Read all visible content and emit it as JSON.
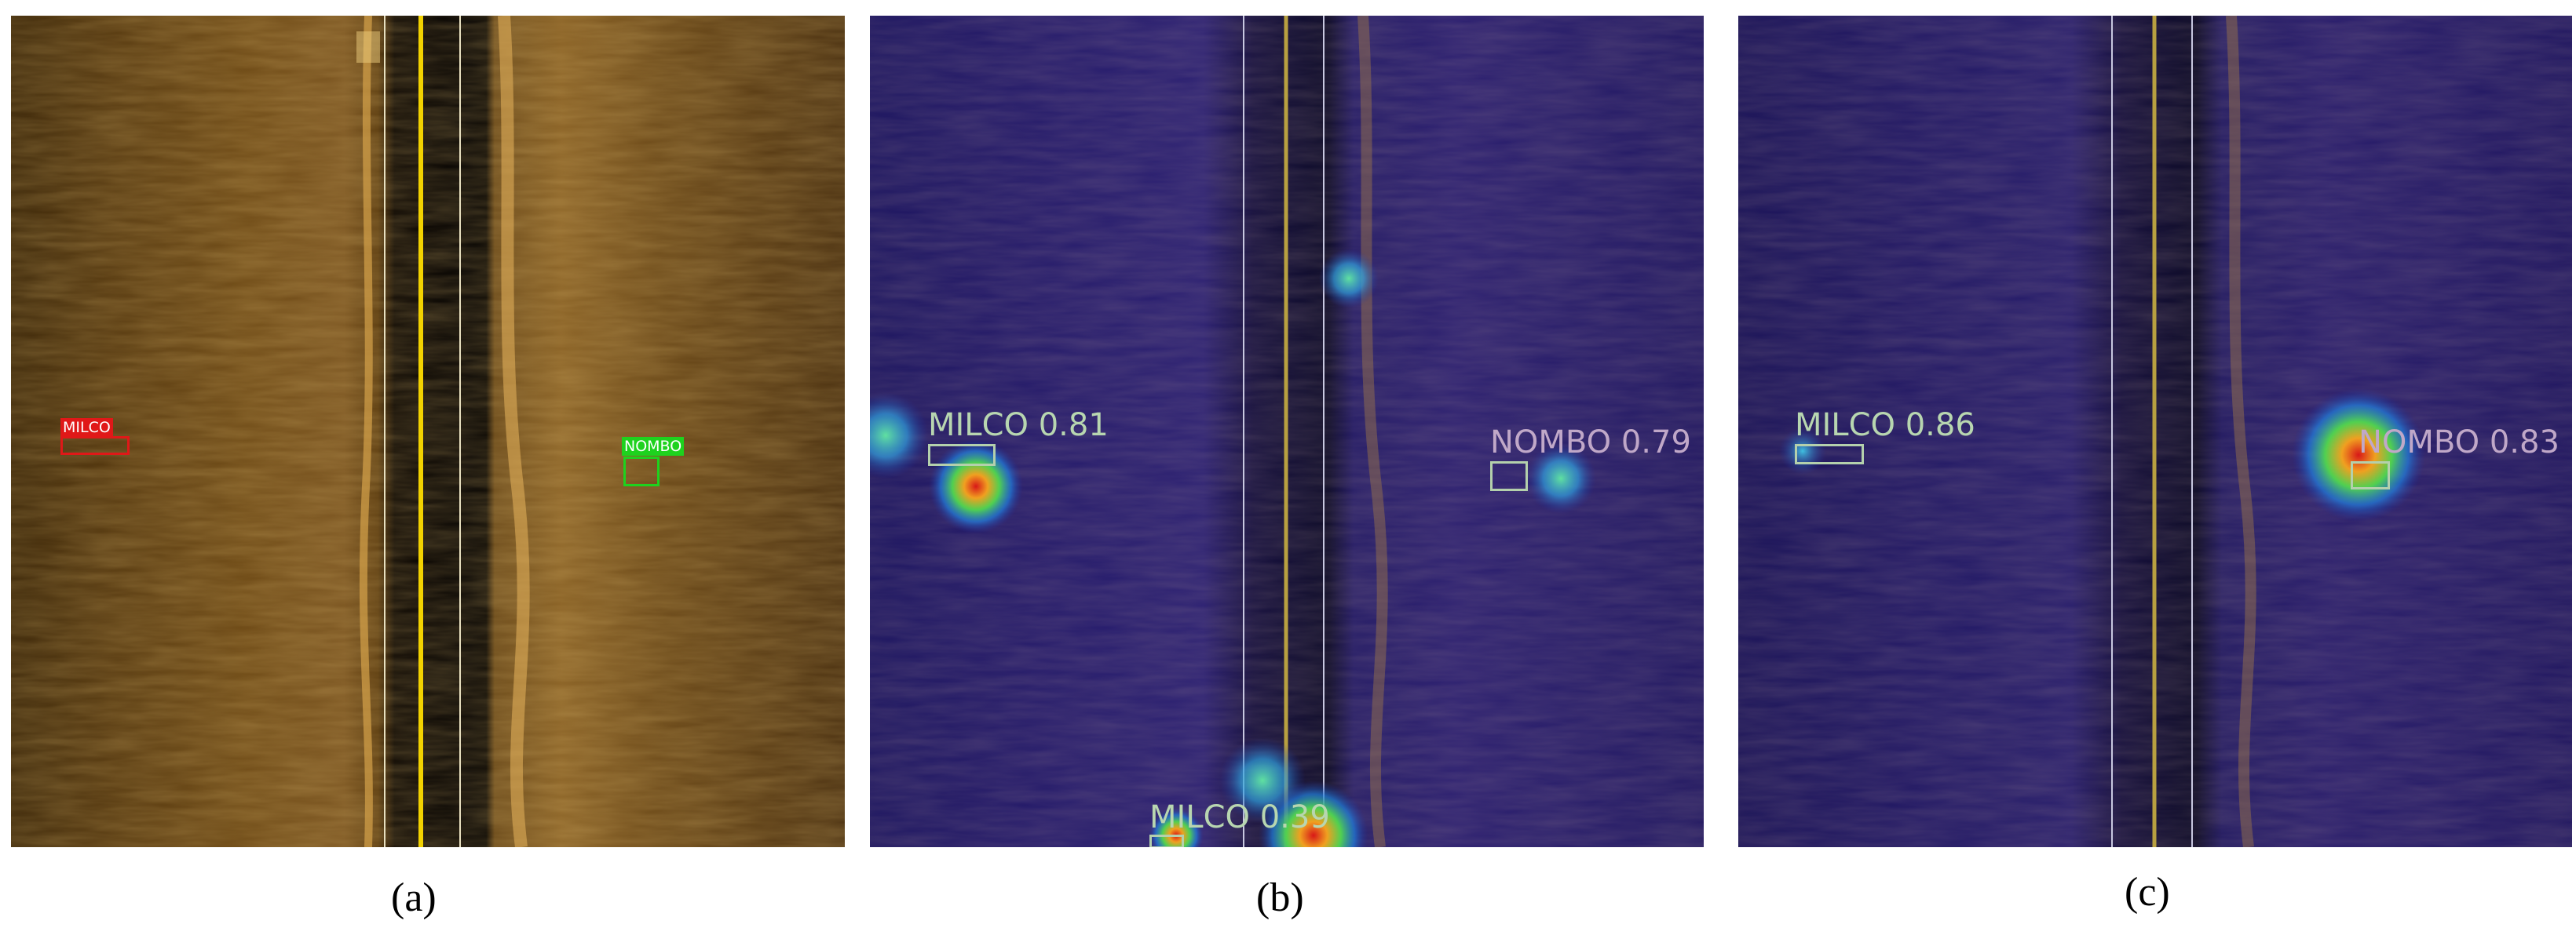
{
  "panels": {
    "a": {
      "caption": "(a)",
      "detections": [
        {
          "label": "MILCO",
          "color": "#e01818"
        },
        {
          "label": "NOMBO",
          "color": "#1ed21e"
        }
      ]
    },
    "b": {
      "caption": "(b)",
      "detections": [
        {
          "label": "MILCO 0.81"
        },
        {
          "label": "NOMBO 0.79"
        },
        {
          "label": "MILCO 0.39"
        }
      ]
    },
    "c": {
      "caption": "(c)",
      "detections": [
        {
          "label": "MILCO 0.86"
        },
        {
          "label": "NOMBO 0.83"
        }
      ]
    }
  },
  "colors": {
    "sonar_tint": "#8a6226",
    "heatmap_low": "#1c1560",
    "heatmap_high": "#d81818",
    "box_outline": "#b4d0ac"
  }
}
